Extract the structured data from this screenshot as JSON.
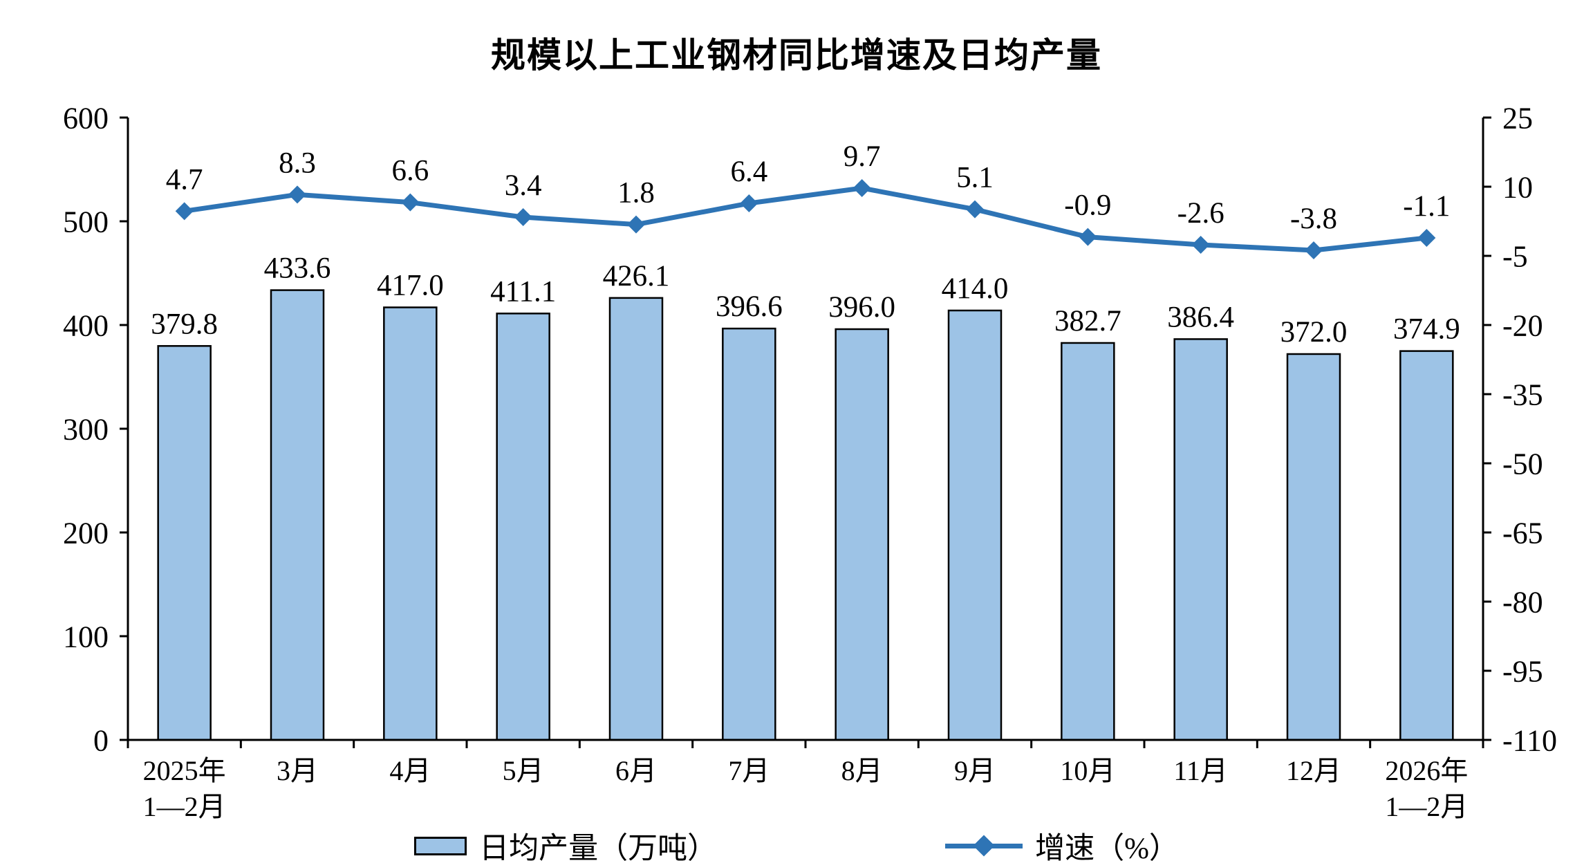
{
  "title": "规模以上工业钢材同比增速及日均产量",
  "chart_data": {
    "type": "bar+line combo",
    "title": "规模以上工业钢材同比增速及日均产量",
    "categories": [
      "2025年\n1—2月",
      "3月",
      "4月",
      "5月",
      "6月",
      "7月",
      "8月",
      "9月",
      "10月",
      "11月",
      "12月",
      "2026年\n1—2月"
    ],
    "series": [
      {
        "name": "日均产量（万吨）",
        "type": "bar",
        "axis": "left",
        "values": [
          379.8,
          433.6,
          417.0,
          411.1,
          426.1,
          396.6,
          396.0,
          414.0,
          382.7,
          386.4,
          372.0,
          374.9
        ],
        "color": "#9DC3E6",
        "border_color": "#000000"
      },
      {
        "name": "增速（%）",
        "type": "line",
        "axis": "right",
        "values": [
          4.7,
          8.3,
          6.6,
          3.4,
          1.8,
          6.4,
          9.7,
          5.1,
          -0.9,
          -2.6,
          -3.8,
          -1.1
        ],
        "color": "#2E74B5",
        "marker": "diamond"
      }
    ],
    "left_axis": {
      "min": 0,
      "max": 600,
      "ticks": [
        0,
        100,
        200,
        300,
        400,
        500,
        600
      ]
    },
    "right_axis": {
      "min": -110,
      "max": 25,
      "ticks": [
        25,
        10,
        -5,
        -20,
        -35,
        -50,
        -65,
        -80,
        -95,
        -110
      ]
    },
    "grid": false,
    "legend_position": "bottom",
    "data_labels": true
  }
}
